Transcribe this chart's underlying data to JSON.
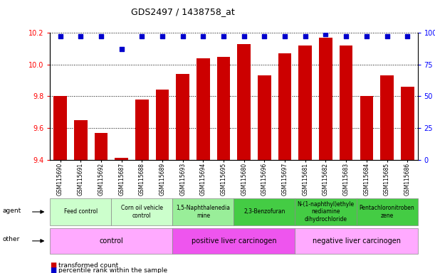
{
  "title": "GDS2497 / 1438758_at",
  "samples": [
    "GSM115690",
    "GSM115691",
    "GSM115692",
    "GSM115687",
    "GSM115688",
    "GSM115689",
    "GSM115693",
    "GSM115694",
    "GSM115695",
    "GSM115680",
    "GSM115696",
    "GSM115697",
    "GSM115681",
    "GSM115682",
    "GSM115683",
    "GSM115684",
    "GSM115685",
    "GSM115686"
  ],
  "bar_values": [
    9.8,
    9.65,
    9.57,
    9.41,
    9.78,
    9.84,
    9.94,
    10.04,
    10.05,
    10.13,
    9.93,
    10.07,
    10.12,
    10.17,
    10.12,
    9.8,
    9.93,
    9.86
  ],
  "percentile_values": [
    97,
    97,
    97,
    87,
    97,
    97,
    97,
    97,
    97,
    97,
    97,
    97,
    97,
    99,
    97,
    97,
    97,
    97
  ],
  "ylim_left": [
    9.4,
    10.2
  ],
  "ylim_right": [
    0,
    100
  ],
  "yticks_left": [
    9.4,
    9.6,
    9.8,
    10.0,
    10.2
  ],
  "yticks_right": [
    0,
    25,
    50,
    75,
    100
  ],
  "ytick_right_labels": [
    "0",
    "25",
    "50",
    "75",
    "100%"
  ],
  "bar_color": "#cc0000",
  "percentile_color": "#0000cc",
  "agent_groups": [
    {
      "label": "Feed control",
      "start": 0,
      "end": 3,
      "color": "#ccffcc"
    },
    {
      "label": "Corn oil vehicle\ncontrol",
      "start": 3,
      "end": 6,
      "color": "#ccffcc"
    },
    {
      "label": "1,5-Naphthalenedia\nmine",
      "start": 6,
      "end": 9,
      "color": "#99ee99"
    },
    {
      "label": "2,3-Benzofuran",
      "start": 9,
      "end": 12,
      "color": "#44cc44"
    },
    {
      "label": "N-(1-naphthyl)ethyle\nnediamine\ndihydrochloride",
      "start": 12,
      "end": 15,
      "color": "#44cc44"
    },
    {
      "label": "Pentachloronitroben\nzene",
      "start": 15,
      "end": 18,
      "color": "#44cc44"
    }
  ],
  "other_groups": [
    {
      "label": "control",
      "start": 0,
      "end": 6,
      "color": "#ffaaff"
    },
    {
      "label": "positive liver carcinogen",
      "start": 6,
      "end": 12,
      "color": "#ee55ee"
    },
    {
      "label": "negative liver carcinogen",
      "start": 12,
      "end": 18,
      "color": "#ffaaff"
    }
  ],
  "legend_items": [
    {
      "label": "transformed count",
      "color": "#cc0000"
    },
    {
      "label": "percentile rank within the sample",
      "color": "#0000cc"
    }
  ],
  "background_color": "#ffffff"
}
